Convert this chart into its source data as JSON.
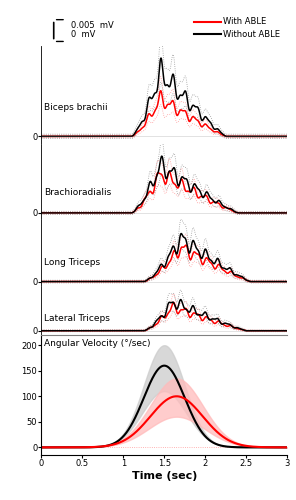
{
  "title": "",
  "time_range": [
    0,
    3
  ],
  "emg_labels": [
    "Biceps brachii",
    "Brachioradialis",
    "Long Triceps",
    "Lateral Triceps"
  ],
  "ang_vel_label": "Angular Velocity (°/sec)",
  "scale_bar_label_top": "0.005  mV",
  "scale_bar_label_bot": "0  mV",
  "colors": {
    "red": "#ff0000",
    "black": "#000000",
    "red_dotted": "#ff9999",
    "black_dotted": "#999999",
    "red_sd": "#ffbbbb",
    "black_sd": "#cccccc"
  },
  "legend_red": "With ABLE",
  "legend_black": "Without ABLE",
  "xlabel": "Time (sec)",
  "xticks": [
    0,
    0.5,
    1.0,
    1.5,
    2.0,
    2.5,
    3.0
  ],
  "ang_yticks": [
    0,
    50,
    100,
    150,
    200
  ],
  "ang_ylim": [
    -15,
    220
  ]
}
